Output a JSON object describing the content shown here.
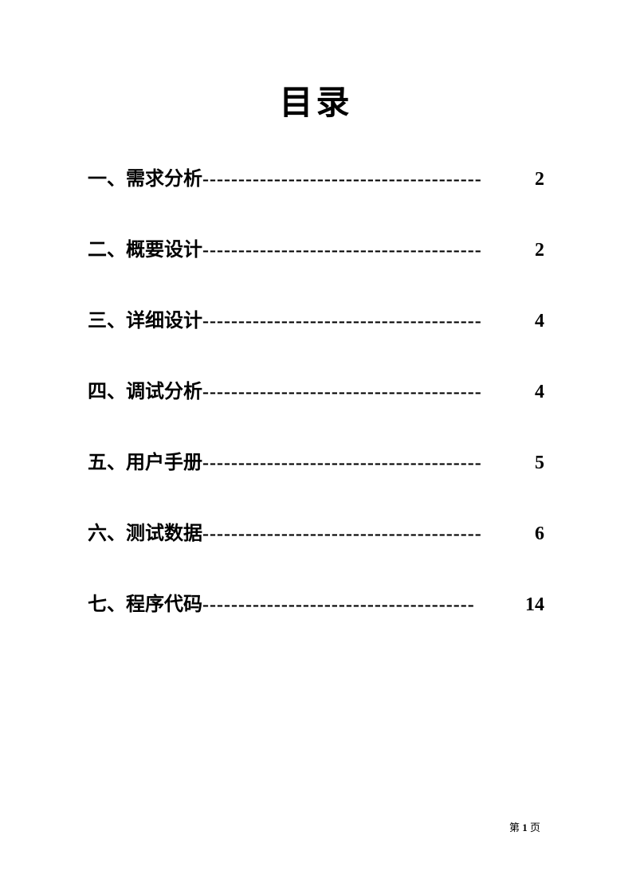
{
  "title": "目录",
  "entries": [
    {
      "label": "一、需求分析",
      "leader": "---------------------------------------",
      "page": "2"
    },
    {
      "label": "二、概要设计",
      "leader": "---------------------------------------",
      "page": "2"
    },
    {
      "label": "三、详细设计",
      "leader": "---------------------------------------",
      "page": "4"
    },
    {
      "label": "四、调试分析",
      "leader": "---------------------------------------",
      "page": "4"
    },
    {
      "label": "五、用户手册",
      "leader": "---------------------------------------",
      "page": "5"
    },
    {
      "label": "六、测试数据",
      "leader": "---------------------------------------",
      "page": "6"
    },
    {
      "label": "七、程序代码",
      "leader": "--------------------------------------",
      "page": "14"
    }
  ],
  "footer": {
    "prefix": "第 ",
    "page_number": "1",
    "suffix": " 页"
  },
  "style": {
    "background_color": "#ffffff",
    "text_color": "#000000",
    "title_fontsize": 42,
    "entry_fontsize": 24,
    "footer_fontsize": 13
  }
}
